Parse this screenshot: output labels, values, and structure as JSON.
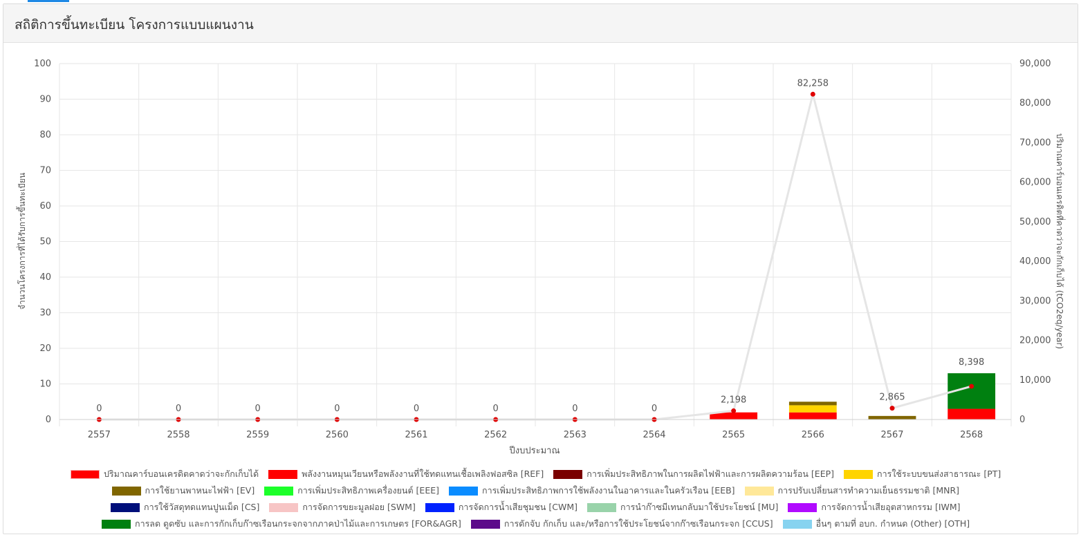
{
  "page": {
    "title": "สถิติการขึ้นทะเบียน โครงการแบบแผนงาน"
  },
  "chart_data": {
    "type": "bar",
    "categories": [
      "2557",
      "2558",
      "2559",
      "2560",
      "2561",
      "2562",
      "2563",
      "2564",
      "2565",
      "2566",
      "2567",
      "2568"
    ],
    "xlabel": "ปีงบประมาณ",
    "ylabel": "จำนวนโครงการที่ได้รับการขึ้นทะเบียน",
    "y2label": "ปริมาณคาร์บอนเครดิตที่คาดว่าจะกักเก็บได้ (tCO2eq/year)",
    "ylim": [
      0,
      100
    ],
    "y2lim": [
      0,
      90000
    ],
    "yticks": [
      "0",
      "10",
      "20",
      "30",
      "40",
      "50",
      "60",
      "70",
      "80",
      "90",
      "100"
    ],
    "y2ticks": [
      "0",
      "10,000",
      "20,000",
      "30,000",
      "40,000",
      "50,000",
      "60,000",
      "70,000",
      "80,000",
      "90,000"
    ],
    "grid": true,
    "legend_position": "bottom",
    "line": {
      "name": "ปริมาณคาร์บอนเครดิตคาดว่าจะกักเก็บได้",
      "axis": "right",
      "color": "#e5e5e5",
      "marker_color": "#e00000",
      "values": [
        0,
        0,
        0,
        0,
        0,
        0,
        0,
        0,
        2198,
        82258,
        2865,
        8398
      ],
      "labels": [
        "0",
        "0",
        "0",
        "0",
        "0",
        "0",
        "0",
        "0",
        "2,198",
        "82,258",
        "2,865",
        "8,398"
      ]
    },
    "series": [
      {
        "name": "พลังงานหมุนเวียนหรือพลังงานที่ใช้ทดแทนเชื้อเพลิงฟอสซิล [REF]",
        "color": "#ff0000",
        "values": [
          0,
          0,
          0,
          0,
          0,
          0,
          0,
          0,
          2,
          2,
          0,
          3
        ]
      },
      {
        "name": "การเพิ่มประสิทธิภาพในการผลิตไฟฟ้าและการผลิตความร้อน [EEP]",
        "color": "#7a0000",
        "values": [
          0,
          0,
          0,
          0,
          0,
          0,
          0,
          0,
          0,
          0,
          0,
          0
        ]
      },
      {
        "name": "การใช้ระบบขนส่งสาธารณะ [PT]",
        "color": "#ffd400",
        "values": [
          0,
          0,
          0,
          0,
          0,
          0,
          0,
          0,
          0,
          2,
          0,
          0
        ]
      },
      {
        "name": "การใช้ยานพาหนะไฟฟ้า [EV]",
        "color": "#806600",
        "values": [
          0,
          0,
          0,
          0,
          0,
          0,
          0,
          0,
          0,
          1,
          1,
          0
        ]
      },
      {
        "name": "การเพิ่มประสิทธิภาพเครื่องยนต์ [EEE]",
        "color": "#1cff2a",
        "values": [
          0,
          0,
          0,
          0,
          0,
          0,
          0,
          0,
          0,
          0,
          0,
          0
        ]
      },
      {
        "name": "การเพิ่มประสิทธิภาพการใช้พลังงานในอาคารและในครัวเรือน [EEB]",
        "color": "#0a8cff",
        "values": [
          0,
          0,
          0,
          0,
          0,
          0,
          0,
          0,
          0,
          0,
          0,
          0
        ]
      },
      {
        "name": "การปรับเปลี่ยนสารทำความเย็นธรรมชาติ [MNR]",
        "color": "#ffe899",
        "values": [
          0,
          0,
          0,
          0,
          0,
          0,
          0,
          0,
          0,
          0,
          0,
          0
        ]
      },
      {
        "name": "การใช้วัสดุทดแทนปูนเม็ด [CS]",
        "color": "#000f7a",
        "values": [
          0,
          0,
          0,
          0,
          0,
          0,
          0,
          0,
          0,
          0,
          0,
          0
        ]
      },
      {
        "name": "การจัดการขยะมูลฝอย [SWM]",
        "color": "#f7c5c5",
        "values": [
          0,
          0,
          0,
          0,
          0,
          0,
          0,
          0,
          0,
          0,
          0,
          0
        ]
      },
      {
        "name": "การจัดการน้ำเสียชุมชน [CWM]",
        "color": "#0022ff",
        "values": [
          0,
          0,
          0,
          0,
          0,
          0,
          0,
          0,
          0,
          0,
          0,
          0
        ]
      },
      {
        "name": "การนำก๊าซมีเทนกลับมาใช้ประโยชน์ [MU]",
        "color": "#99d3aa",
        "values": [
          0,
          0,
          0,
          0,
          0,
          0,
          0,
          0,
          0,
          0,
          0,
          0
        ]
      },
      {
        "name": "การจัดการน้ำเสียอุตสาหกรรม [IWM]",
        "color": "#b10bff",
        "values": [
          0,
          0,
          0,
          0,
          0,
          0,
          0,
          0,
          0,
          0,
          0,
          0
        ]
      },
      {
        "name": "การลด ดูดซับ และการกักเก็บก๊าซเรือนกระจกจากภาคป่าไม้และการเกษตร [FOR&AGR]",
        "color": "#008010",
        "values": [
          0,
          0,
          0,
          0,
          0,
          0,
          0,
          0,
          0,
          0,
          0,
          10
        ]
      },
      {
        "name": "การดักจับ กักเก็บ และ/หรือการใช้ประโยชน์จากก๊าซเรือนกระจก [CCUS]",
        "color": "#5c0a8a",
        "values": [
          0,
          0,
          0,
          0,
          0,
          0,
          0,
          0,
          0,
          0,
          0,
          0
        ]
      },
      {
        "name": "อื่นๆ ตามที่ อบก. กำหนด (Other) [OTH]",
        "color": "#87d3f0",
        "values": [
          0,
          0,
          0,
          0,
          0,
          0,
          0,
          0,
          0,
          0,
          0,
          0
        ]
      }
    ]
  }
}
